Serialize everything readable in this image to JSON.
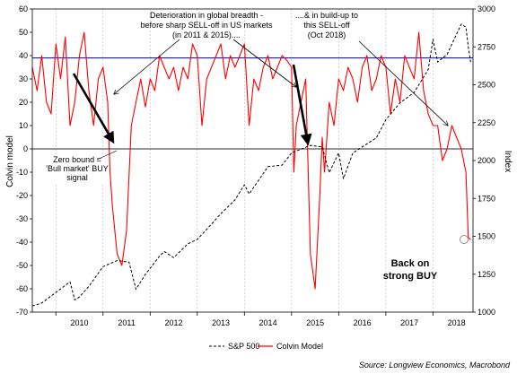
{
  "chart_data": {
    "type": "line",
    "title": "",
    "left_axis": {
      "label": "Colvin model",
      "range": [
        -70,
        60
      ],
      "ticks": [
        60,
        50,
        40,
        30,
        20,
        10,
        0,
        -10,
        -20,
        -30,
        -40,
        -50,
        -60,
        -70
      ]
    },
    "right_axis": {
      "label": "Index",
      "range": [
        1000,
        3000
      ],
      "ticks": [
        3000,
        2750,
        2500,
        2250,
        2000,
        1750,
        1500,
        1250,
        1000
      ]
    },
    "x_axis": {
      "range": [
        2009.5,
        2018.85
      ],
      "tick_labels": [
        "2010",
        "2011",
        "2012",
        "2013",
        "2014",
        "2015",
        "2016",
        "2017",
        "2018"
      ]
    },
    "reference_lines": [
      {
        "value": 39,
        "axis": "left",
        "color": "#00009c"
      },
      {
        "value": 0,
        "axis": "left",
        "color": "#555555"
      }
    ],
    "grid": "vertical",
    "legend_position": "bottom",
    "series": [
      {
        "name": "S&P 500",
        "axis": "right",
        "style": "dashed",
        "color": "#000000",
        "x": [
          2009.5,
          2009.7,
          2010.0,
          2010.3,
          2010.4,
          2010.5,
          2010.7,
          2011.0,
          2011.3,
          2011.55,
          2011.7,
          2011.9,
          2012.2,
          2012.3,
          2012.5,
          2012.8,
          2013.0,
          2013.3,
          2013.5,
          2013.8,
          2014.0,
          2014.1,
          2014.5,
          2014.8,
          2015.0,
          2015.4,
          2015.65,
          2015.8,
          2016.0,
          2016.1,
          2016.3,
          2016.5,
          2016.8,
          2017.0,
          2017.3,
          2017.6,
          2017.9,
          2018.0,
          2018.1,
          2018.3,
          2018.6,
          2018.7,
          2018.75,
          2018.8
        ],
        "values": [
          1040,
          1060,
          1130,
          1200,
          1080,
          1100,
          1170,
          1300,
          1340,
          1330,
          1150,
          1250,
          1370,
          1400,
          1360,
          1450,
          1480,
          1580,
          1650,
          1740,
          1840,
          1780,
          1960,
          1970,
          2050,
          2100,
          2090,
          1920,
          2050,
          1880,
          2050,
          2090,
          2150,
          2270,
          2380,
          2450,
          2600,
          2800,
          2650,
          2700,
          2900,
          2880,
          2750,
          2650
        ]
      },
      {
        "name": "Colvin Model",
        "axis": "left",
        "style": "solid",
        "color": "#ff0000",
        "x": [
          2009.5,
          2009.6,
          2009.7,
          2009.8,
          2009.9,
          2010.0,
          2010.1,
          2010.2,
          2010.3,
          2010.4,
          2010.5,
          2010.6,
          2010.7,
          2010.8,
          2010.9,
          2011.0,
          2011.1,
          2011.15,
          2011.2,
          2011.3,
          2011.4,
          2011.5,
          2011.6,
          2011.7,
          2011.8,
          2011.9,
          2012.0,
          2012.1,
          2012.2,
          2012.3,
          2012.4,
          2012.5,
          2012.6,
          2012.7,
          2012.8,
          2012.9,
          2013.0,
          2013.1,
          2013.2,
          2013.3,
          2013.4,
          2013.5,
          2013.6,
          2013.7,
          2013.8,
          2013.9,
          2014.0,
          2014.1,
          2014.2,
          2014.3,
          2014.4,
          2014.5,
          2014.6,
          2014.7,
          2014.8,
          2014.9,
          2015.0,
          2015.05,
          2015.1,
          2015.2,
          2015.3,
          2015.4,
          2015.5,
          2015.6,
          2015.65,
          2015.7,
          2015.8,
          2015.9,
          2016.0,
          2016.1,
          2016.2,
          2016.3,
          2016.4,
          2016.5,
          2016.6,
          2016.7,
          2016.8,
          2016.9,
          2017.0,
          2017.1,
          2017.2,
          2017.3,
          2017.4,
          2017.5,
          2017.6,
          2017.7,
          2017.8,
          2017.9,
          2018.0,
          2018.1,
          2018.2,
          2018.3,
          2018.4,
          2018.5,
          2018.6,
          2018.7,
          2018.75,
          2018.8
        ],
        "values": [
          35,
          25,
          40,
          20,
          15,
          45,
          30,
          48,
          10,
          20,
          40,
          50,
          25,
          10,
          30,
          35,
          20,
          -10,
          -25,
          -45,
          -50,
          -35,
          10,
          20,
          30,
          18,
          30,
          25,
          40,
          35,
          30,
          35,
          25,
          35,
          30,
          45,
          40,
          10,
          30,
          35,
          40,
          45,
          30,
          40,
          35,
          40,
          45,
          10,
          30,
          25,
          35,
          40,
          30,
          35,
          40,
          38,
          35,
          -10,
          10,
          20,
          30,
          -45,
          -60,
          -20,
          5,
          -10,
          20,
          10,
          30,
          25,
          35,
          30,
          20,
          35,
          40,
          25,
          30,
          40,
          35,
          15,
          30,
          20,
          40,
          35,
          30,
          50,
          25,
          15,
          10,
          10,
          -5,
          0,
          10,
          5,
          0,
          -10,
          -38,
          -39
        ]
      }
    ],
    "annotations": {
      "breadth": [
        "Deterioration in global breadth -",
        "before sharp SELL-off in US markets",
        "(in 2011 & 2015)...."
      ],
      "buildup": [
        "....& in build-up to",
        "this SELL-off",
        "(Oct 2018)"
      ],
      "zero_bound": [
        "Zero bound =",
        "'Bull market' BUY",
        "signal"
      ],
      "back_on": [
        "Back on",
        "strong BUY"
      ]
    },
    "source": "Source: Longview Economics, Macrobond"
  }
}
